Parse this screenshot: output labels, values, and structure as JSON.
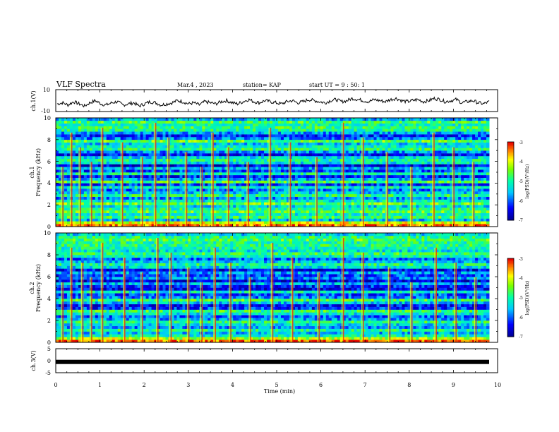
{
  "header": {
    "title": "VLF Spectra",
    "date": "Mar.4 , 2023",
    "station": "station= KAP",
    "start": "start  UT =   9 : 50: 1"
  },
  "chart_data": [
    {
      "type": "line",
      "ylabel": "ch.1(V)",
      "ylim": [
        -10,
        10
      ],
      "y_tick_labels": [
        "10",
        "-10"
      ],
      "xlim": [
        0,
        10
      ],
      "series": [
        {
          "values": [
            -3,
            -2,
            -4,
            -1,
            -3,
            -5,
            -2,
            0,
            -3,
            -4,
            -2,
            -1,
            -4,
            -3,
            -2,
            -5,
            -3,
            -1,
            -2,
            -4,
            -3,
            -2,
            0,
            -1,
            -3,
            -2,
            -4,
            -1,
            -2,
            -3,
            -1,
            0,
            -2,
            -3,
            -1,
            1,
            -1,
            -2,
            0,
            -1,
            -2,
            -3,
            -1,
            0,
            -2,
            -1,
            1,
            0,
            -1,
            -2,
            0,
            1,
            -1,
            0,
            2,
            1,
            0,
            -1,
            1,
            0,
            -1,
            1,
            2,
            0,
            -1,
            0,
            1,
            -1,
            0,
            2,
            1,
            -1,
            0,
            1,
            -2,
            -1,
            0,
            -2,
            -3,
            -1
          ]
        }
      ]
    },
    {
      "type": "heatmap",
      "ylabel": "ch.1",
      "ylabel2": "Frequency (kHz)",
      "ylim": [
        0,
        10
      ],
      "y_tick_labels": [
        "0",
        "2",
        "4",
        "6",
        "8",
        "10"
      ],
      "xlim": [
        0,
        10
      ],
      "colorbar": {
        "label": "log(PSD)(V²/Hz)",
        "range": [
          -7,
          -3
        ],
        "tick_labels": [
          "-3",
          "-4",
          "-5",
          "-6",
          "-7"
        ]
      },
      "rows_low_to_high_freq": [
        -3.4,
        -4.0,
        -5.6,
        -4.8,
        -5.2,
        -4.6,
        -5.0,
        -5.4,
        -4.5,
        -5.3,
        -5.8,
        -4.9,
        -5.5,
        -5.9,
        -5.2,
        -6.2,
        -4.7,
        -5.7,
        -6.3,
        -5.1,
        -6.1,
        -5.6,
        -6.6,
        -5.3,
        -5.0,
        -5.4,
        -6.4,
        -5.8,
        -4.9,
        -5.2,
        -5.5,
        -4.6,
        -5.9,
        -6.3,
        -5.7,
        -5.0,
        -4.8,
        -5.1,
        -4.7,
        -5.6
      ],
      "bursts_min": [
        0.15,
        0.35,
        0.55,
        0.8,
        1.05,
        1.5,
        1.95,
        2.25,
        2.55,
        2.95,
        3.3,
        3.55,
        3.9,
        4.35,
        4.85,
        5.3,
        5.9,
        6.5,
        6.95,
        7.5,
        8.05,
        8.55,
        9.0,
        9.45
      ]
    },
    {
      "type": "heatmap",
      "ylabel": "ch.2",
      "ylabel2": "Frequency (kHz)",
      "ylim": [
        0,
        10
      ],
      "y_tick_labels": [
        "0",
        "2",
        "4",
        "6",
        "8",
        "10"
      ],
      "xlim": [
        0,
        10
      ],
      "colorbar": {
        "label": "log(PSD)(V²/Hz)",
        "range": [
          -7,
          -3
        ],
        "tick_labels": [
          "-3",
          "-4",
          "-5",
          "-6",
          "-7"
        ]
      },
      "rows_low_to_high_freq": [
        -3.3,
        -4.2,
        -5.2,
        -5.6,
        -5.0,
        -5.8,
        -5.4,
        -4.9,
        -5.7,
        -6.0,
        -5.3,
        -4.8,
        -6.2,
        -6.4,
        -5.5,
        -4.7,
        -5.9,
        -6.1,
        -5.2,
        -6.5,
        -6.3,
        -5.6,
        -6.6,
        -5.8,
        -6.2,
        -5.7,
        -6.5,
        -5.4,
        -5.0,
        -5.6,
        -6.0,
        -5.2,
        -4.8,
        -5.3,
        -5.1,
        -4.9,
        -5.0,
        -4.7,
        -4.9,
        -5.4
      ],
      "bursts_min": [
        0.15,
        0.35,
        0.6,
        0.8,
        1.05,
        1.55,
        1.95,
        2.3,
        2.6,
        3.0,
        3.3,
        3.6,
        3.95,
        4.4,
        4.9,
        5.35,
        5.95,
        6.5,
        6.95,
        7.55,
        8.05,
        8.6,
        9.05,
        9.5
      ]
    },
    {
      "type": "line",
      "ylabel": "ch.3(V)",
      "ylim": [
        -5,
        5
      ],
      "y_tick_labels": [
        "5",
        "0",
        "-5"
      ],
      "xlim": [
        0,
        10
      ],
      "x_tick_labels": [
        "0",
        "1",
        "2",
        "3",
        "4",
        "5",
        "6",
        "7",
        "8",
        "9",
        "10"
      ],
      "xlabel": "Time (min)",
      "series": [
        {
          "values": [
            -0.5,
            -0.5
          ]
        }
      ]
    }
  ]
}
